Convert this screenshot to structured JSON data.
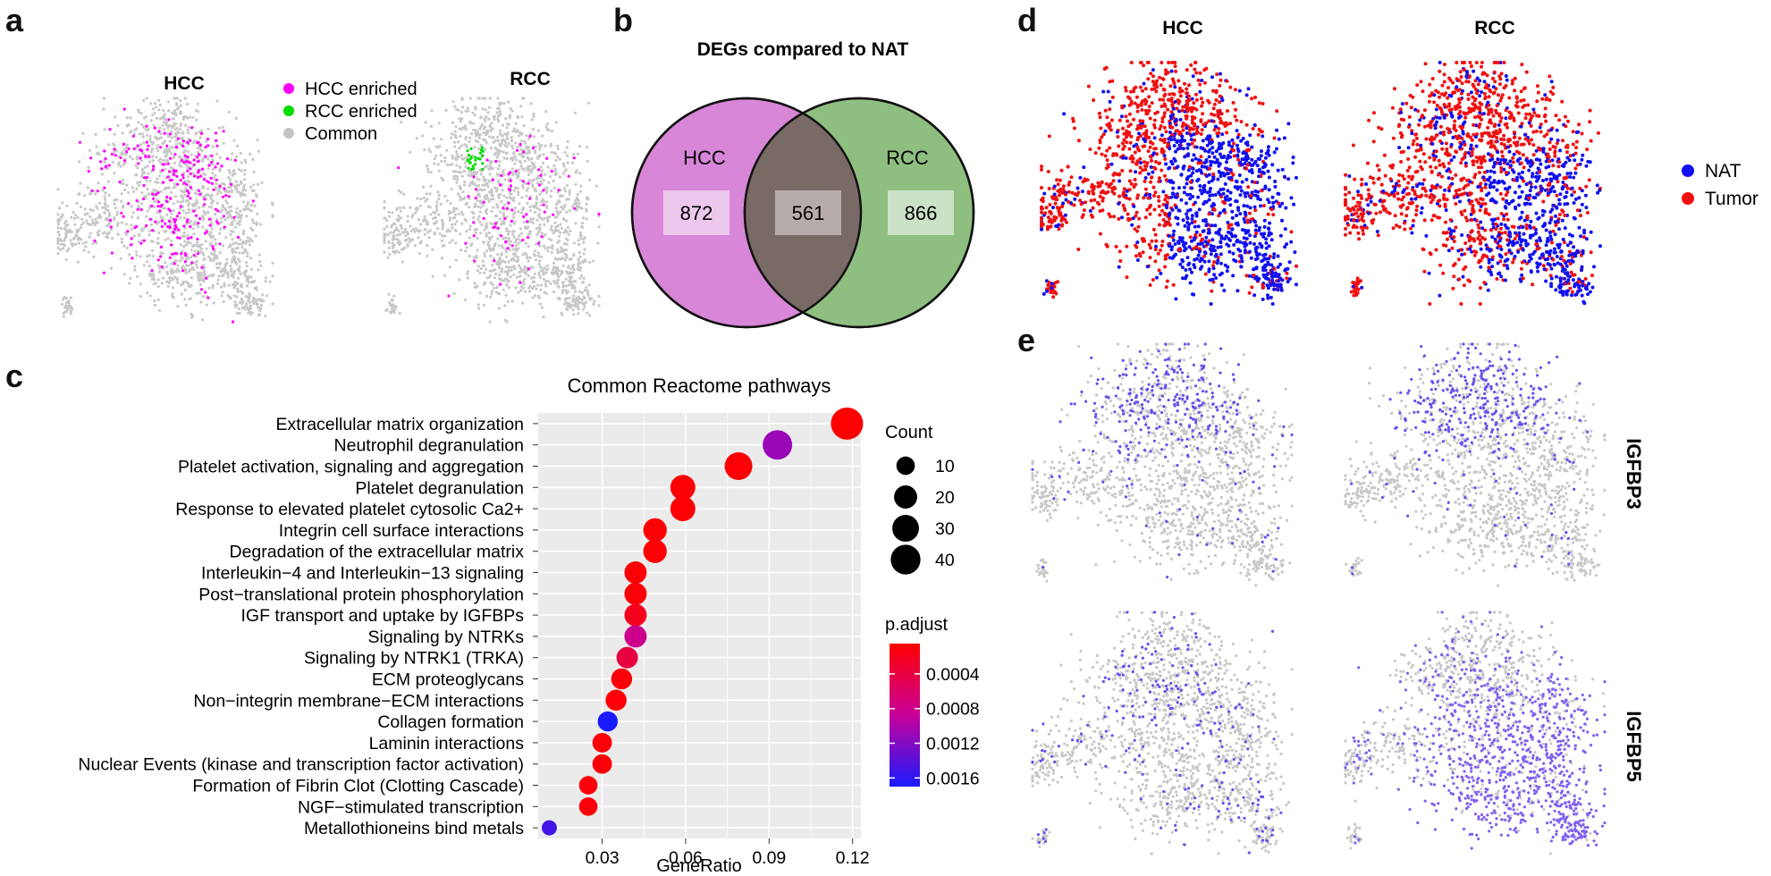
{
  "panels": {
    "a": "a",
    "b": "b",
    "c": "c",
    "d": "d",
    "e": "e"
  },
  "panel_a": {
    "umap_titles": [
      "HCC",
      "RCC"
    ],
    "legend": [
      {
        "label": "HCC enriched",
        "color": "#ff00ff"
      },
      {
        "label": "RCC enriched",
        "color": "#00dd00"
      },
      {
        "label": "Common",
        "color": "#c4c4c4"
      }
    ]
  },
  "panel_b": {
    "title": "DEGs compared to NAT",
    "left_label": "HCC",
    "right_label": "RCC",
    "left_only": "872",
    "overlap": "561",
    "right_only": "866",
    "left_color": "#d886d8",
    "right_color": "#8fbf80",
    "overlap_color": "#7a6a66"
  },
  "panel_d": {
    "umap_titles": [
      "HCC",
      "RCC"
    ],
    "legend": [
      {
        "label": "NAT",
        "color": "#1010f0"
      },
      {
        "label": "Tumor",
        "color": "#f01010"
      }
    ]
  },
  "panel_e": {
    "genes": [
      "IGFBP3",
      "IGFBP5"
    ],
    "low_color": "#c8c8c8",
    "high_color": "#6040f0"
  },
  "chart_data": {
    "type": "scatter",
    "title": "Common Reactome pathways",
    "xlabel": "GeneRatio",
    "ylabel": "",
    "xlim": [
      0.007,
      0.123
    ],
    "xticks": [
      "0.03",
      "0.06",
      "0.09",
      "0.12"
    ],
    "xtick_values": [
      0.03,
      0.06,
      0.09,
      0.12
    ],
    "grid": true,
    "categories": [
      "Extracellular matrix organization",
      "Neutrophil degranulation",
      "Platelet activation, signaling and aggregation",
      "Platelet degranulation",
      "Response to elevated platelet cytosolic Ca2+",
      "Integrin cell surface interactions",
      "Degradation of the extracellular matrix",
      "Interleukin−4 and Interleukin−13 signaling",
      "Post−translational protein phosphorylation",
      "IGF transport and uptake by IGFBPs",
      "Signaling by NTRKs",
      "Signaling by NTRK1 (TRKA)",
      "ECM proteoglycans",
      "Non−integrin membrane−ECM interactions",
      "Collagen formation",
      "Laminin interactions",
      "Nuclear Events (kinase and transcription factor activation)",
      "Formation of Fibrin Clot (Clotting Cascade)",
      "NGF−stimulated transcription",
      "Metallothioneins bind metals"
    ],
    "gene_ratio": [
      0.118,
      0.093,
      0.079,
      0.059,
      0.059,
      0.049,
      0.049,
      0.042,
      0.042,
      0.042,
      0.042,
      0.039,
      0.037,
      0.035,
      0.032,
      0.03,
      0.03,
      0.025,
      0.025,
      0.011
    ],
    "count": [
      49,
      39,
      33,
      25,
      25,
      21,
      21,
      18,
      18,
      18,
      18,
      16,
      15,
      15,
      13,
      12,
      12,
      10,
      10,
      5
    ],
    "p_adjust": [
      5e-05,
      0.0011,
      8e-05,
      8e-05,
      8e-05,
      8e-05,
      8e-05,
      8e-05,
      8e-05,
      0.0002,
      0.0008,
      0.0004,
      0.0001,
      0.0001,
      0.0017,
      0.0001,
      0.0001,
      0.0001,
      0.0001,
      0.0015
    ],
    "size_legend": {
      "title": "Count",
      "values": [
        10,
        20,
        30,
        40
      ],
      "labels": [
        "10",
        "20",
        "30",
        "40"
      ]
    },
    "color_legend": {
      "title": "p.adjust",
      "range": [
        5e-05,
        0.0017
      ],
      "ticks": [
        0.0004,
        0.0008,
        0.0012,
        0.0016
      ],
      "labels": [
        "0.0004",
        "0.0008",
        "0.0012",
        "0.0016"
      ],
      "low_color": "#ff0000",
      "high_color": "#0000ff"
    },
    "legend_position": "right"
  }
}
